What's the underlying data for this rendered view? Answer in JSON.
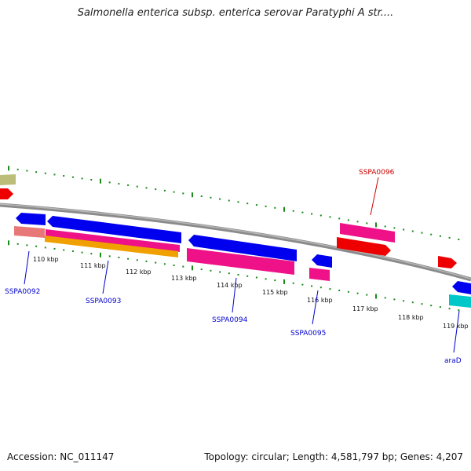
{
  "title": "Salmonella enterica subsp. enterica serovar Paratyphi A str....",
  "footer": {
    "accession": "Accession: NC_011147",
    "summary": "Topology: circular; Length: 4,581,797 bp; Genes: 4,207"
  },
  "colors": {
    "backbone": "#808080",
    "tick": "#1a8a1a",
    "gene_label_forward": "#cc0000",
    "gene_label_reverse": "#0000cc",
    "blue": "#0000ee",
    "red": "#ee0000",
    "pink": "#ee1188",
    "salmon": "#e87878",
    "orange": "#f0a000",
    "olive": "#bdbd7a",
    "cyan": "#00c8c8"
  },
  "ticks": [
    "110 kbp",
    "111 kbp",
    "112 kbp",
    "113 kbp",
    "114 kbp",
    "115 kbp",
    "116 kbp",
    "117 kbp",
    "118 kbp",
    "119 kbp"
  ],
  "gene_labels": [
    {
      "text": "SSPA0092",
      "strand": "reverse"
    },
    {
      "text": "SSPA0093",
      "strand": "reverse"
    },
    {
      "text": "SSPA0094",
      "strand": "reverse"
    },
    {
      "text": "SSPA0095",
      "strand": "reverse"
    },
    {
      "text": "SSPA0096",
      "strand": "forward"
    },
    {
      "text": "araD",
      "strand": "reverse"
    }
  ]
}
